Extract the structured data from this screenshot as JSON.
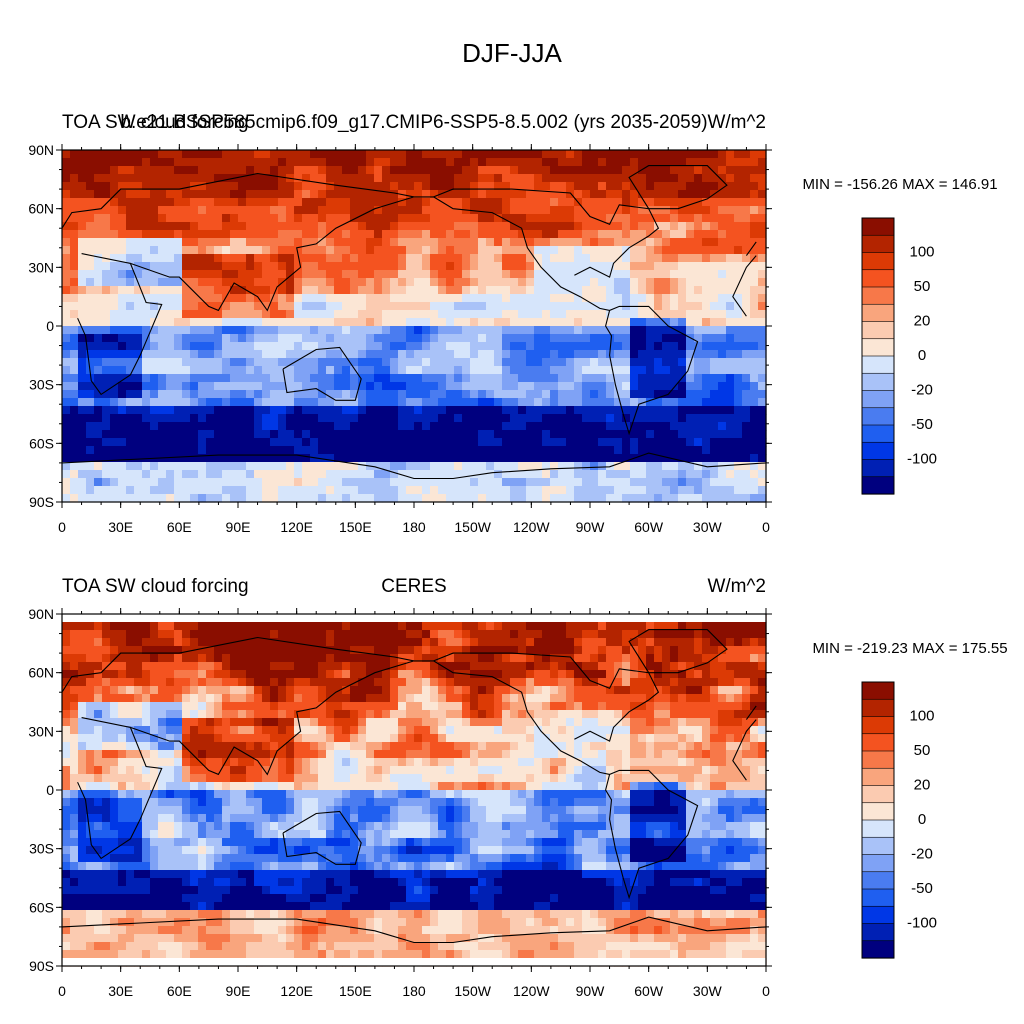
{
  "page_title": "DJF-JJA",
  "colors": {
    "scale": [
      "#00007f",
      "#0020b4",
      "#0037e6",
      "#1f5ff0",
      "#4a7cf0",
      "#7fa2f5",
      "#a9c2f8",
      "#d6e5fb",
      "#fbe6d5",
      "#fbcbb1",
      "#f9a57d",
      "#f77849",
      "#f45320",
      "#dc3a05",
      "#b32400",
      "#8a0e00"
    ]
  },
  "chart_data": [
    {
      "type": "heatmap",
      "left_title": "TOA SW cloud forcing",
      "center_title": "b.e21.BSSP585cmip6.f09_g17.CMIP6-SSP5-8.5.002 (yrs 2035-2059)",
      "units": "W/m^2",
      "stats": "MIN = -156.26 MAX = 146.91",
      "y_ticks": [
        "90N",
        "60N",
        "30N",
        "0",
        "30S",
        "60S",
        "90S"
      ],
      "x_ticks": [
        "0",
        "30E",
        "60E",
        "90E",
        "120E",
        "150E",
        "180",
        "150W",
        "120W",
        "90W",
        "60W",
        "30W",
        "0"
      ],
      "colorbar_labels": [
        "100",
        "50",
        "20",
        "0",
        "-20",
        "-50",
        "-100"
      ],
      "colorbar_levels": [
        -150,
        -120,
        -100,
        -80,
        -60,
        -50,
        -40,
        -20,
        0,
        20,
        30,
        40,
        50,
        70,
        80,
        100,
        120
      ]
    },
    {
      "type": "heatmap",
      "left_title": "TOA SW cloud forcing",
      "center_title": "CERES",
      "units": "W/m^2",
      "stats": "MIN = -219.23 MAX = 175.55",
      "y_ticks": [
        "90N",
        "60N",
        "30N",
        "0",
        "30S",
        "60S",
        "90S"
      ],
      "x_ticks": [
        "0",
        "30E",
        "60E",
        "90E",
        "120E",
        "150E",
        "180",
        "150W",
        "120W",
        "90W",
        "60W",
        "30W",
        "0"
      ],
      "colorbar_labels": [
        "100",
        "50",
        "20",
        "0",
        "-20",
        "-50",
        "-100"
      ],
      "colorbar_levels": [
        -150,
        -120,
        -100,
        -80,
        -60,
        -50,
        -40,
        -20,
        0,
        20,
        30,
        40,
        50,
        70,
        80,
        100,
        120
      ]
    }
  ]
}
